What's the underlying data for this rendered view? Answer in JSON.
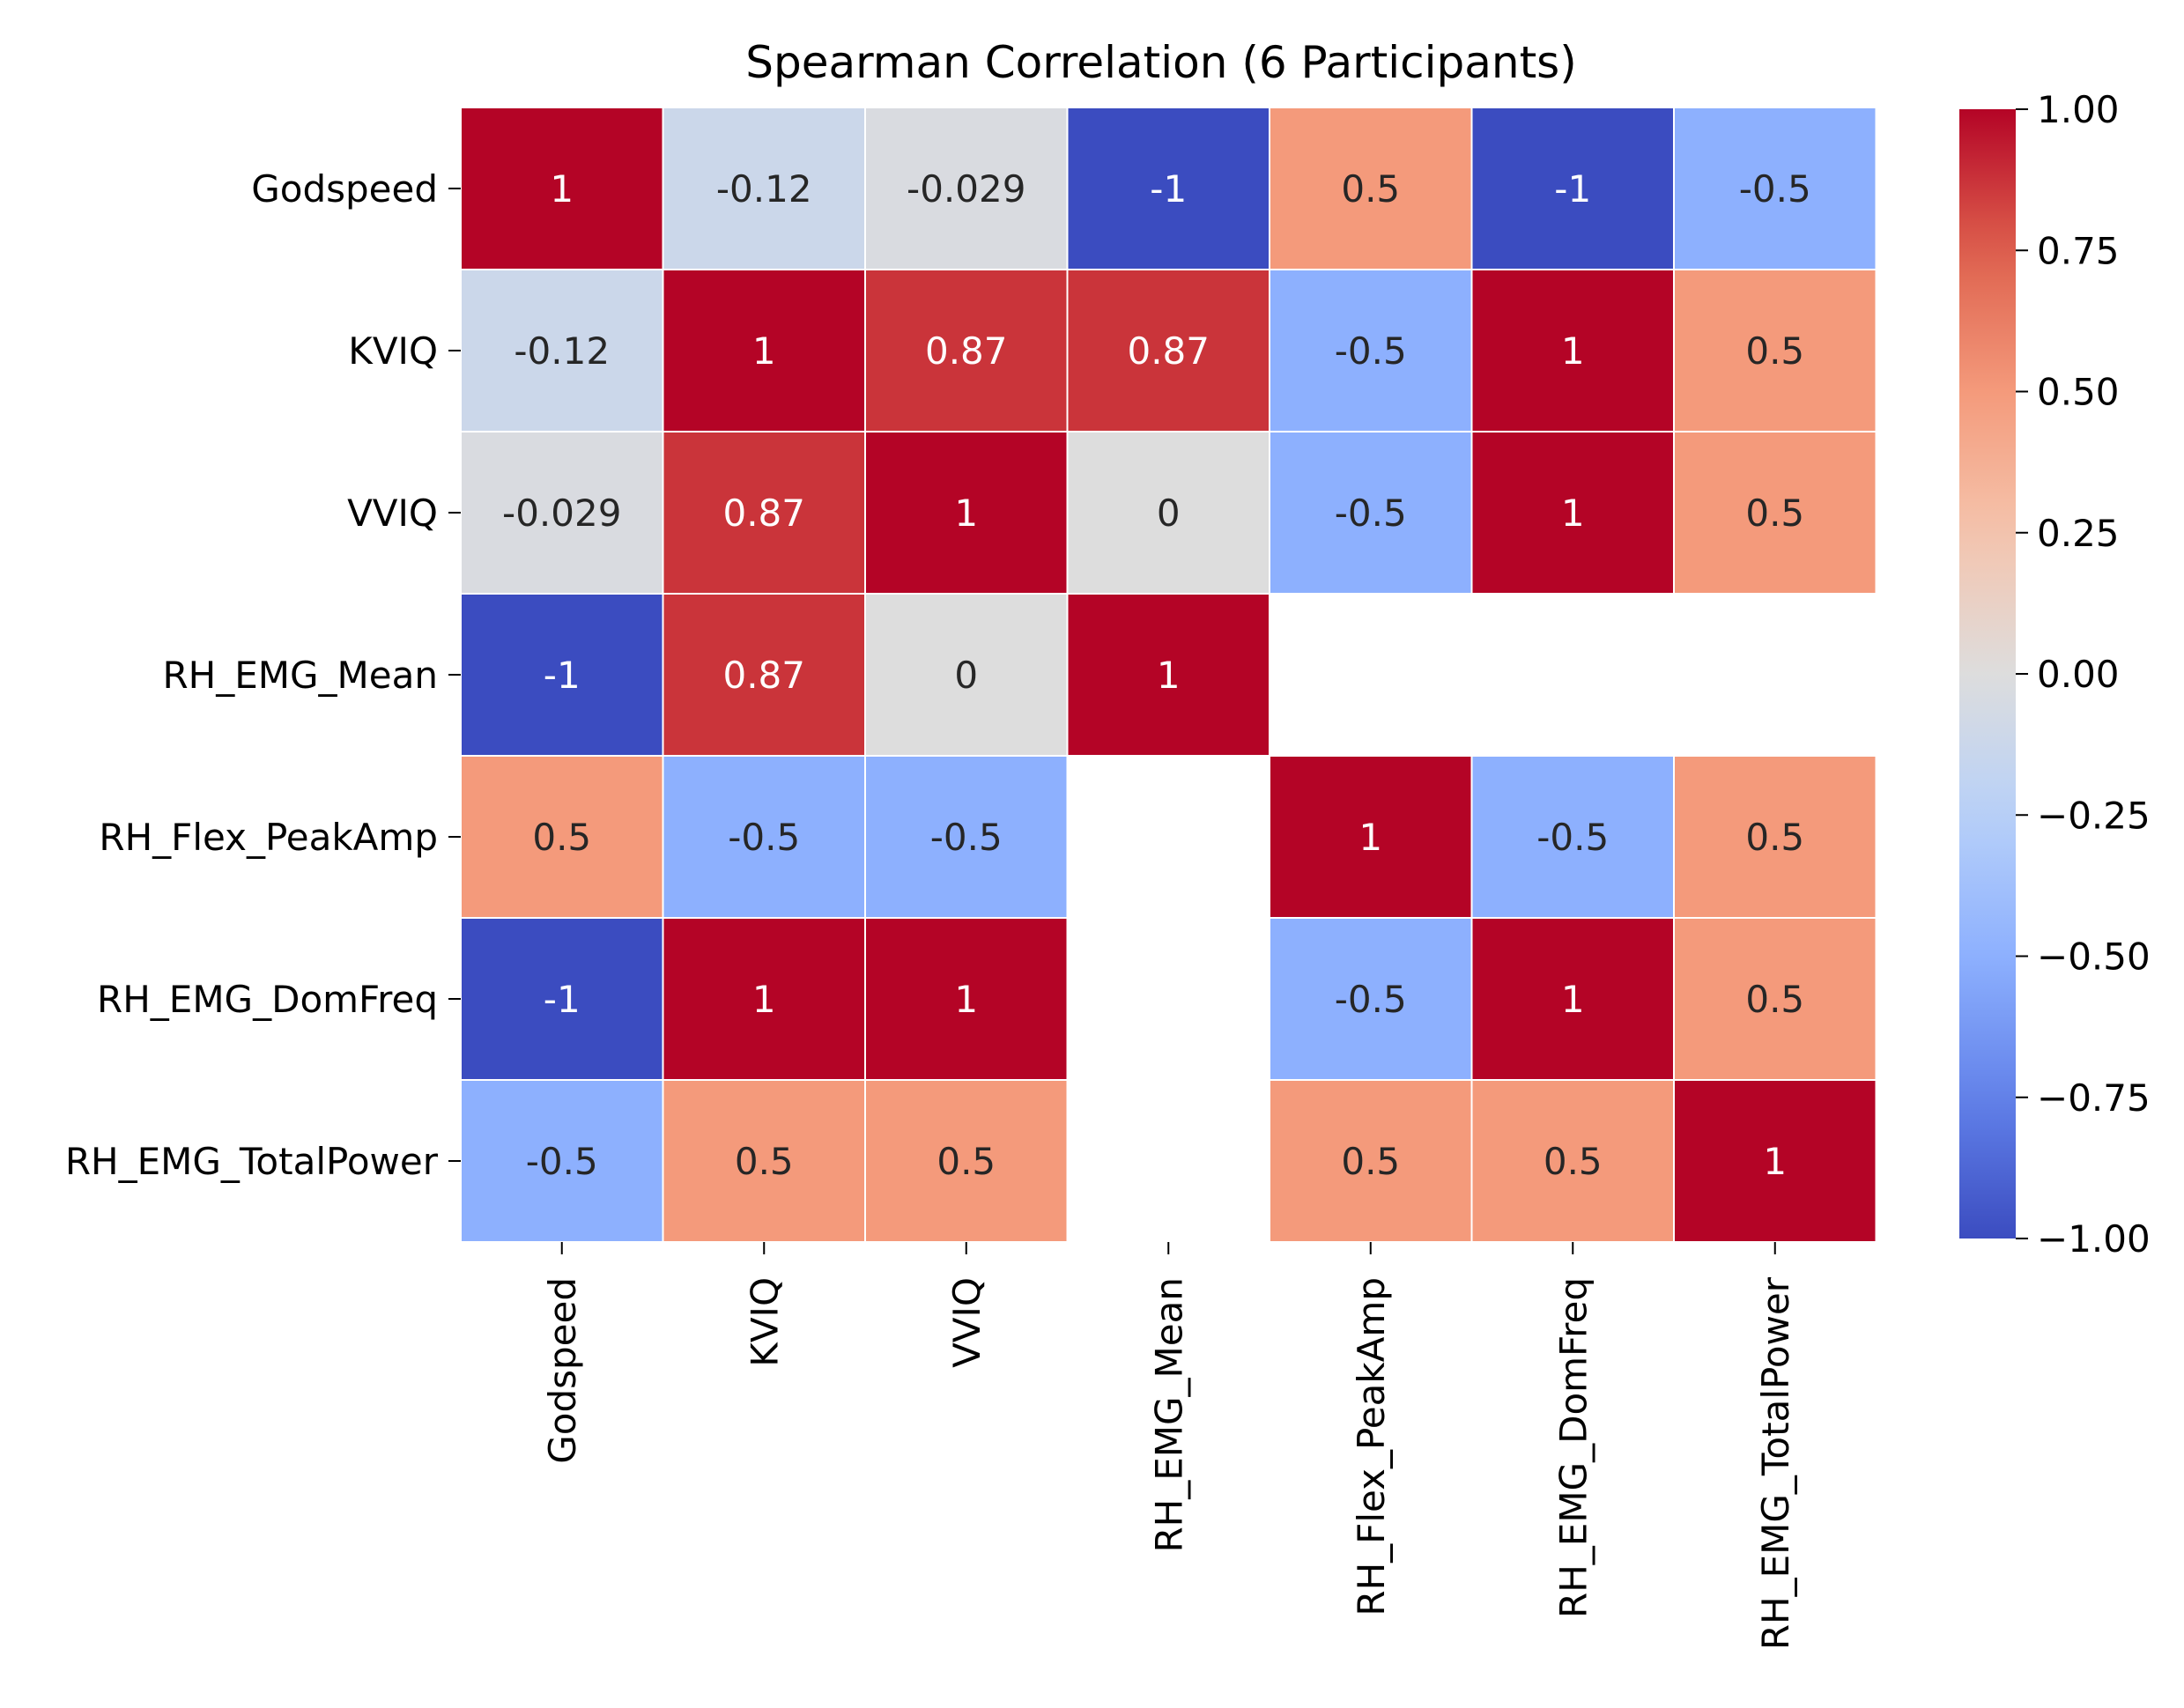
{
  "chart_data": {
    "type": "heatmap",
    "title": "Spearman Correlation (6 Participants)",
    "xlabel": "",
    "ylabel": "",
    "row_labels": [
      "Godspeed",
      "KVIQ",
      "VVIQ",
      "RH_EMG_Mean",
      "RH_Flex_PeakAmp",
      "RH_EMG_DomFreq",
      "RH_EMG_TotalPower"
    ],
    "col_labels": [
      "Godspeed",
      "KVIQ",
      "VVIQ",
      "RH_EMG_Mean",
      "RH_Flex_PeakAmp",
      "RH_EMG_DomFreq",
      "RH_EMG_TotalPower"
    ],
    "values": [
      [
        1,
        -0.12,
        -0.029,
        -1,
        0.5,
        -1,
        -0.5
      ],
      [
        -0.12,
        1,
        0.87,
        0.87,
        -0.5,
        1,
        0.5
      ],
      [
        -0.029,
        0.87,
        1,
        0,
        -0.5,
        1,
        0.5
      ],
      [
        -1,
        0.87,
        0,
        1,
        null,
        null,
        null
      ],
      [
        0.5,
        -0.5,
        -0.5,
        null,
        1,
        -0.5,
        0.5
      ],
      [
        -1,
        1,
        1,
        null,
        -0.5,
        1,
        0.5
      ],
      [
        -0.5,
        0.5,
        0.5,
        null,
        0.5,
        0.5,
        1
      ]
    ],
    "annotations": [
      [
        "1",
        "-0.12",
        "-0.029",
        "-1",
        "0.5",
        "-1",
        "-0.5"
      ],
      [
        "-0.12",
        "1",
        "0.87",
        "0.87",
        "-0.5",
        "1",
        "0.5"
      ],
      [
        "-0.029",
        "0.87",
        "1",
        "0",
        "-0.5",
        "1",
        "0.5"
      ],
      [
        "-1",
        "0.87",
        "0",
        "1",
        null,
        null,
        null
      ],
      [
        "0.5",
        "-0.5",
        "-0.5",
        null,
        "1",
        "-0.5",
        "0.5"
      ],
      [
        "-1",
        "1",
        "1",
        null,
        "-0.5",
        "1",
        "0.5"
      ],
      [
        "-0.5",
        "0.5",
        "0.5",
        null,
        "0.5",
        "0.5",
        "1"
      ]
    ],
    "colormap": "coolwarm",
    "vmin": -1,
    "vmax": 1,
    "colorbar": {
      "ticks": [
        1,
        0.75,
        0.5,
        0.25,
        0,
        -0.25,
        -0.5,
        -0.75,
        -1
      ],
      "tick_labels": [
        "1.00",
        "0.75",
        "0.50",
        "0.25",
        "0.00",
        "−0.25",
        "−0.50",
        "−0.75",
        "−1.00"
      ]
    },
    "colors": {
      "cell_border": "#ffffff",
      "text_light": "#ffffff",
      "text_dark": "#262626",
      "axis": "#000000"
    }
  }
}
